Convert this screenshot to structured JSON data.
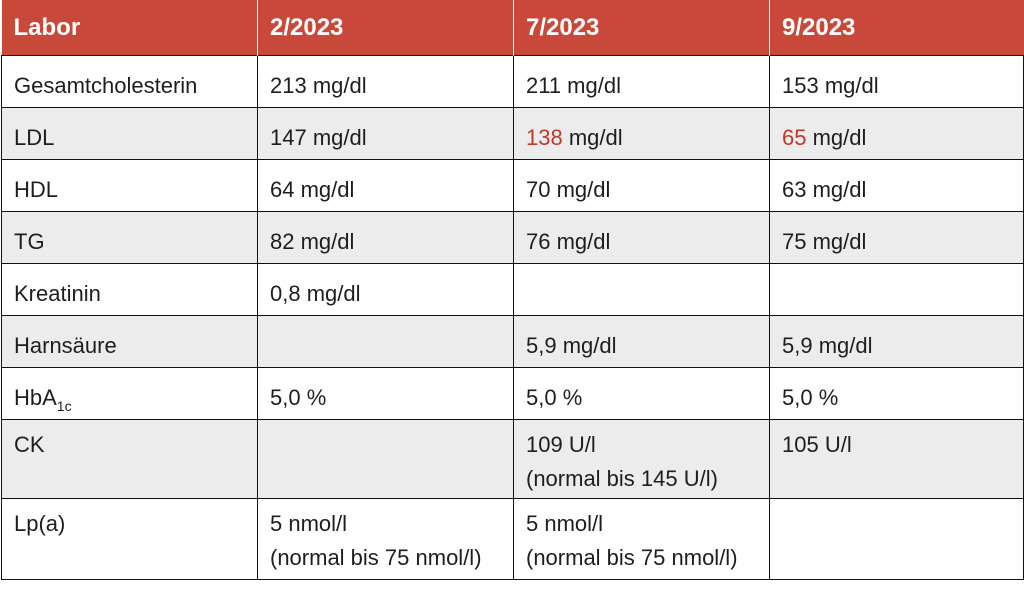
{
  "header": [
    "Labor",
    "2/2023",
    "7/2023",
    "9/2023"
  ],
  "rows": {
    "gesamtcholesterin": {
      "label": "Gesamtcholesterin",
      "v1": "213 mg/dl",
      "v2": "211 mg/dl",
      "v3": "153 mg/dl"
    },
    "ldl": {
      "label": "LDL",
      "v1": "147 mg/dl",
      "v2_num": "138",
      "v2_unit": " mg/dl",
      "v3_num": "65",
      "v3_unit": " mg/dl",
      "highlight_color": "#c0392b"
    },
    "hdl": {
      "label": "HDL",
      "v1": "64 mg/dl",
      "v2": "70 mg/dl",
      "v3": "63 mg/dl"
    },
    "tg": {
      "label": "TG",
      "v1": "82 mg/dl",
      "v2": "76 mg/dl",
      "v3": "75 mg/dl"
    },
    "kreatinin": {
      "label": "Kreatinin",
      "v1": "0,8 mg/dl",
      "v2": "",
      "v3": ""
    },
    "harnsaeure": {
      "label": "Harnsäure",
      "v1": "",
      "v2": "5,9 mg/dl",
      "v3": "5,9 mg/dl"
    },
    "hba1c": {
      "label_main": "HbA",
      "label_sub": "1c",
      "v1": "5,0 %",
      "v2": "5,0 %",
      "v3": "5,0 %"
    },
    "ck": {
      "label": "CK",
      "v1": "",
      "v2_line1": "109 U/l",
      "v2_line2": "(normal bis 145 U/l)",
      "v3": "105 U/l"
    },
    "lpa": {
      "label": "Lp(a)",
      "v1_line1": "5 nmol/l",
      "v1_line2": "(normal bis 75 nmol/l)",
      "v2_line1": "5 nmol/l",
      "v2_line2": "(normal bis 75 nmol/l)",
      "v3": ""
    }
  },
  "colors": {
    "header_bg": "#c8493a",
    "stripe_bg": "#ececec",
    "highlight": "#c0392b"
  }
}
